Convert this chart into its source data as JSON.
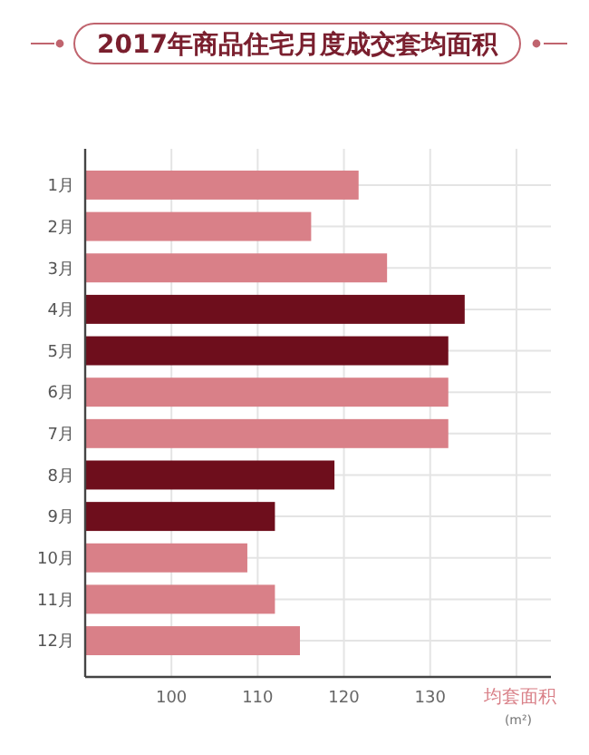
{
  "chart_data": {
    "type": "bar",
    "orientation": "horizontal",
    "title": "2017年商品住宅月度成交套均面积",
    "xlabel": "均套面积 (m²)",
    "categories": [
      "1月",
      "2月",
      "3月",
      "4月",
      "5月",
      "6月",
      "7月",
      "8月",
      "9月",
      "10月",
      "11月",
      "12月"
    ],
    "values": [
      121.7,
      116.2,
      125.0,
      134.0,
      132.1,
      132.1,
      132.1,
      118.9,
      112.0,
      108.8,
      112.0,
      114.9
    ],
    "colors": [
      "#d98088",
      "#d98088",
      "#d98088",
      "#6e0e1c",
      "#6e0e1c",
      "#d98088",
      "#d98088",
      "#6e0e1c",
      "#6e0e1c",
      "#d98088",
      "#d98088",
      "#d98088"
    ],
    "xlim": [
      90,
      144
    ],
    "xticks": [
      100,
      110,
      120,
      130,
      {
        "value": 140,
        "label": null
      }
    ],
    "grid": true
  }
}
